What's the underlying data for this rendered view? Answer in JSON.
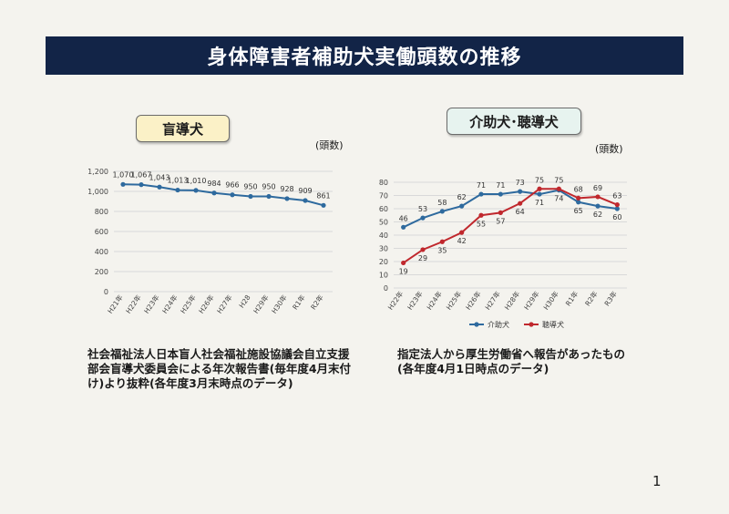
{
  "page": {
    "title": "身体障害者補助犬実働頭数の推移",
    "page_number": "1"
  },
  "left_panel": {
    "tag": "盲導犬",
    "unit": "(頭数)",
    "note": "社会福祉法人日本盲人社会福祉施設協議会自立支援\n部会盲導犬委員会による年次報告書(毎年度4月末付\nけ)より抜粋(各年度3月末時点のデータ)"
  },
  "right_panel": {
    "tag": "介助犬･聴導犬",
    "unit": "(頭数)",
    "note": "指定法人から厚生労働省へ報告があったもの\n(各年度4月1日時点のデータ)"
  },
  "colors": {
    "title_bg": "#122447",
    "blue_series": "#2e6a9e",
    "red_series": "#c0282d"
  },
  "chart_data": [
    {
      "type": "line",
      "categories": [
        "H21年",
        "H22年",
        "H23年",
        "H24年",
        "H25年",
        "H26年",
        "H27年",
        "H28",
        "H29年",
        "H30年",
        "R1年",
        "R2年"
      ],
      "series": [
        {
          "values": [
            1070,
            1067,
            1043,
            1013,
            1010,
            984,
            966,
            950,
            950,
            928,
            909,
            861
          ],
          "labels": [
            "1,070",
            "1,067",
            "1,043",
            "1,013",
            "1,010",
            "984",
            "966",
            "950",
            "950",
            "928",
            "909",
            "861"
          ]
        }
      ],
      "ylim": [
        0,
        1200
      ],
      "yticks": [
        0,
        200,
        400,
        600,
        800,
        1000,
        1200
      ],
      "ytick_labels": [
        "0",
        "200",
        "400",
        "600",
        "800",
        "1,000",
        "1,200"
      ],
      "grid": true,
      "legend": "none"
    },
    {
      "type": "line",
      "categories": [
        "H22年",
        "H23年",
        "H24年",
        "H25年",
        "H26年",
        "H27年",
        "H28年",
        "H29年",
        "H30年",
        "R1年",
        "R2年",
        "R3年"
      ],
      "series": [
        {
          "name": "介助犬",
          "values": [
            46,
            53,
            58,
            62,
            71,
            71,
            73,
            71,
            74,
            65,
            62,
            60
          ]
        },
        {
          "name": "聴導犬",
          "values": [
            19,
            29,
            35,
            42,
            55,
            57,
            64,
            75,
            75,
            68,
            69,
            63
          ]
        }
      ],
      "ylim": [
        0,
        80
      ],
      "yticks": [
        0,
        10,
        20,
        30,
        40,
        50,
        60,
        70,
        80
      ],
      "grid": true,
      "legend": "bottom"
    }
  ]
}
